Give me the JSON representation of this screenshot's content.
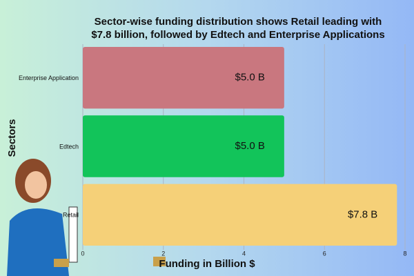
{
  "chart_data": {
    "type": "barh",
    "title": "Sector-wise funding distribution shows Retail leading with $7.8 billion, followed by Edtech and Enterprise Applications",
    "categories": [
      "Enterprise Application",
      "Edtech",
      "Retail"
    ],
    "values": [
      5.0,
      5.0,
      7.8
    ],
    "value_labels": [
      "$5.0 B",
      "$5.0 B",
      "$7.8 B"
    ],
    "colors": [
      "#c9777f",
      "#12c45a",
      "#f5d078"
    ],
    "xlabel": "Funding in Billion $",
    "ylabel": "Sectors",
    "xlim": [
      0,
      8
    ],
    "xticks": [
      0,
      2,
      4,
      6,
      8
    ],
    "grid": true
  }
}
